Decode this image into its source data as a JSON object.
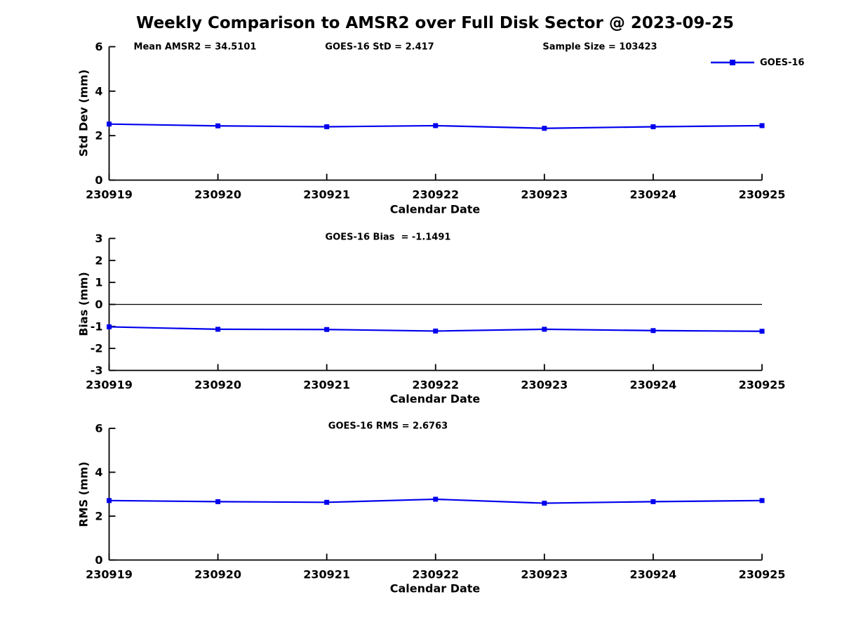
{
  "title": "Weekly Comparison to AMSR2 over Full Disk Sector @ 2023-09-25",
  "legend": {
    "label": "GOES-16",
    "color": "#0000EE",
    "marker": "square"
  },
  "colors": {
    "line": "#0000EE",
    "axis": "#000000",
    "zero_line": "#000000",
    "background": "#FFFFFF",
    "text": "#000000"
  },
  "dates": [
    "230919",
    "230920",
    "230921",
    "230922",
    "230923",
    "230924",
    "230925"
  ],
  "chart_data": [
    {
      "type": "line",
      "name": "std-dev",
      "ylabel": "Std Dev (mm)",
      "xlabel": "Calendar Date",
      "x": [
        "230919",
        "230920",
        "230921",
        "230922",
        "230923",
        "230924",
        "230925"
      ],
      "series": [
        {
          "name": "GOES-16",
          "values": [
            2.52,
            2.44,
            2.4,
            2.45,
            2.33,
            2.4,
            2.45
          ]
        }
      ],
      "ylim": [
        0,
        6
      ],
      "yticks": [
        0,
        2,
        4,
        6
      ],
      "zero_line": false,
      "grid": false,
      "legend_position": "top-right",
      "annotations": [
        {
          "text": "Mean AMSR2 = 34.5101"
        },
        {
          "text": "GOES-16 StD = 2.417"
        },
        {
          "text": "Sample Size = 103423"
        }
      ]
    },
    {
      "type": "line",
      "name": "bias",
      "ylabel": "Bias (mm)",
      "xlabel": "Calendar Date",
      "x": [
        "230919",
        "230920",
        "230921",
        "230922",
        "230923",
        "230924",
        "230925"
      ],
      "series": [
        {
          "name": "GOES-16",
          "values": [
            -1.02,
            -1.13,
            -1.14,
            -1.21,
            -1.13,
            -1.19,
            -1.22
          ]
        }
      ],
      "ylim": [
        -3,
        3
      ],
      "yticks": [
        -3,
        -2,
        -1,
        0,
        1,
        2,
        3
      ],
      "zero_line": true,
      "grid": false,
      "annotations": [
        {
          "text": "GOES-16 Bias  = -1.1491"
        }
      ]
    },
    {
      "type": "line",
      "name": "rms",
      "ylabel": "RMS (mm)",
      "xlabel": "Calendar Date",
      "x": [
        "230919",
        "230920",
        "230921",
        "230922",
        "230923",
        "230924",
        "230925"
      ],
      "series": [
        {
          "name": "GOES-16",
          "values": [
            2.71,
            2.66,
            2.63,
            2.77,
            2.59,
            2.66,
            2.71
          ]
        }
      ],
      "ylim": [
        0,
        6
      ],
      "yticks": [
        0,
        2,
        4,
        6
      ],
      "zero_line": false,
      "grid": false,
      "annotations": [
        {
          "text": "GOES-16 RMS = 2.6763"
        }
      ]
    }
  ]
}
